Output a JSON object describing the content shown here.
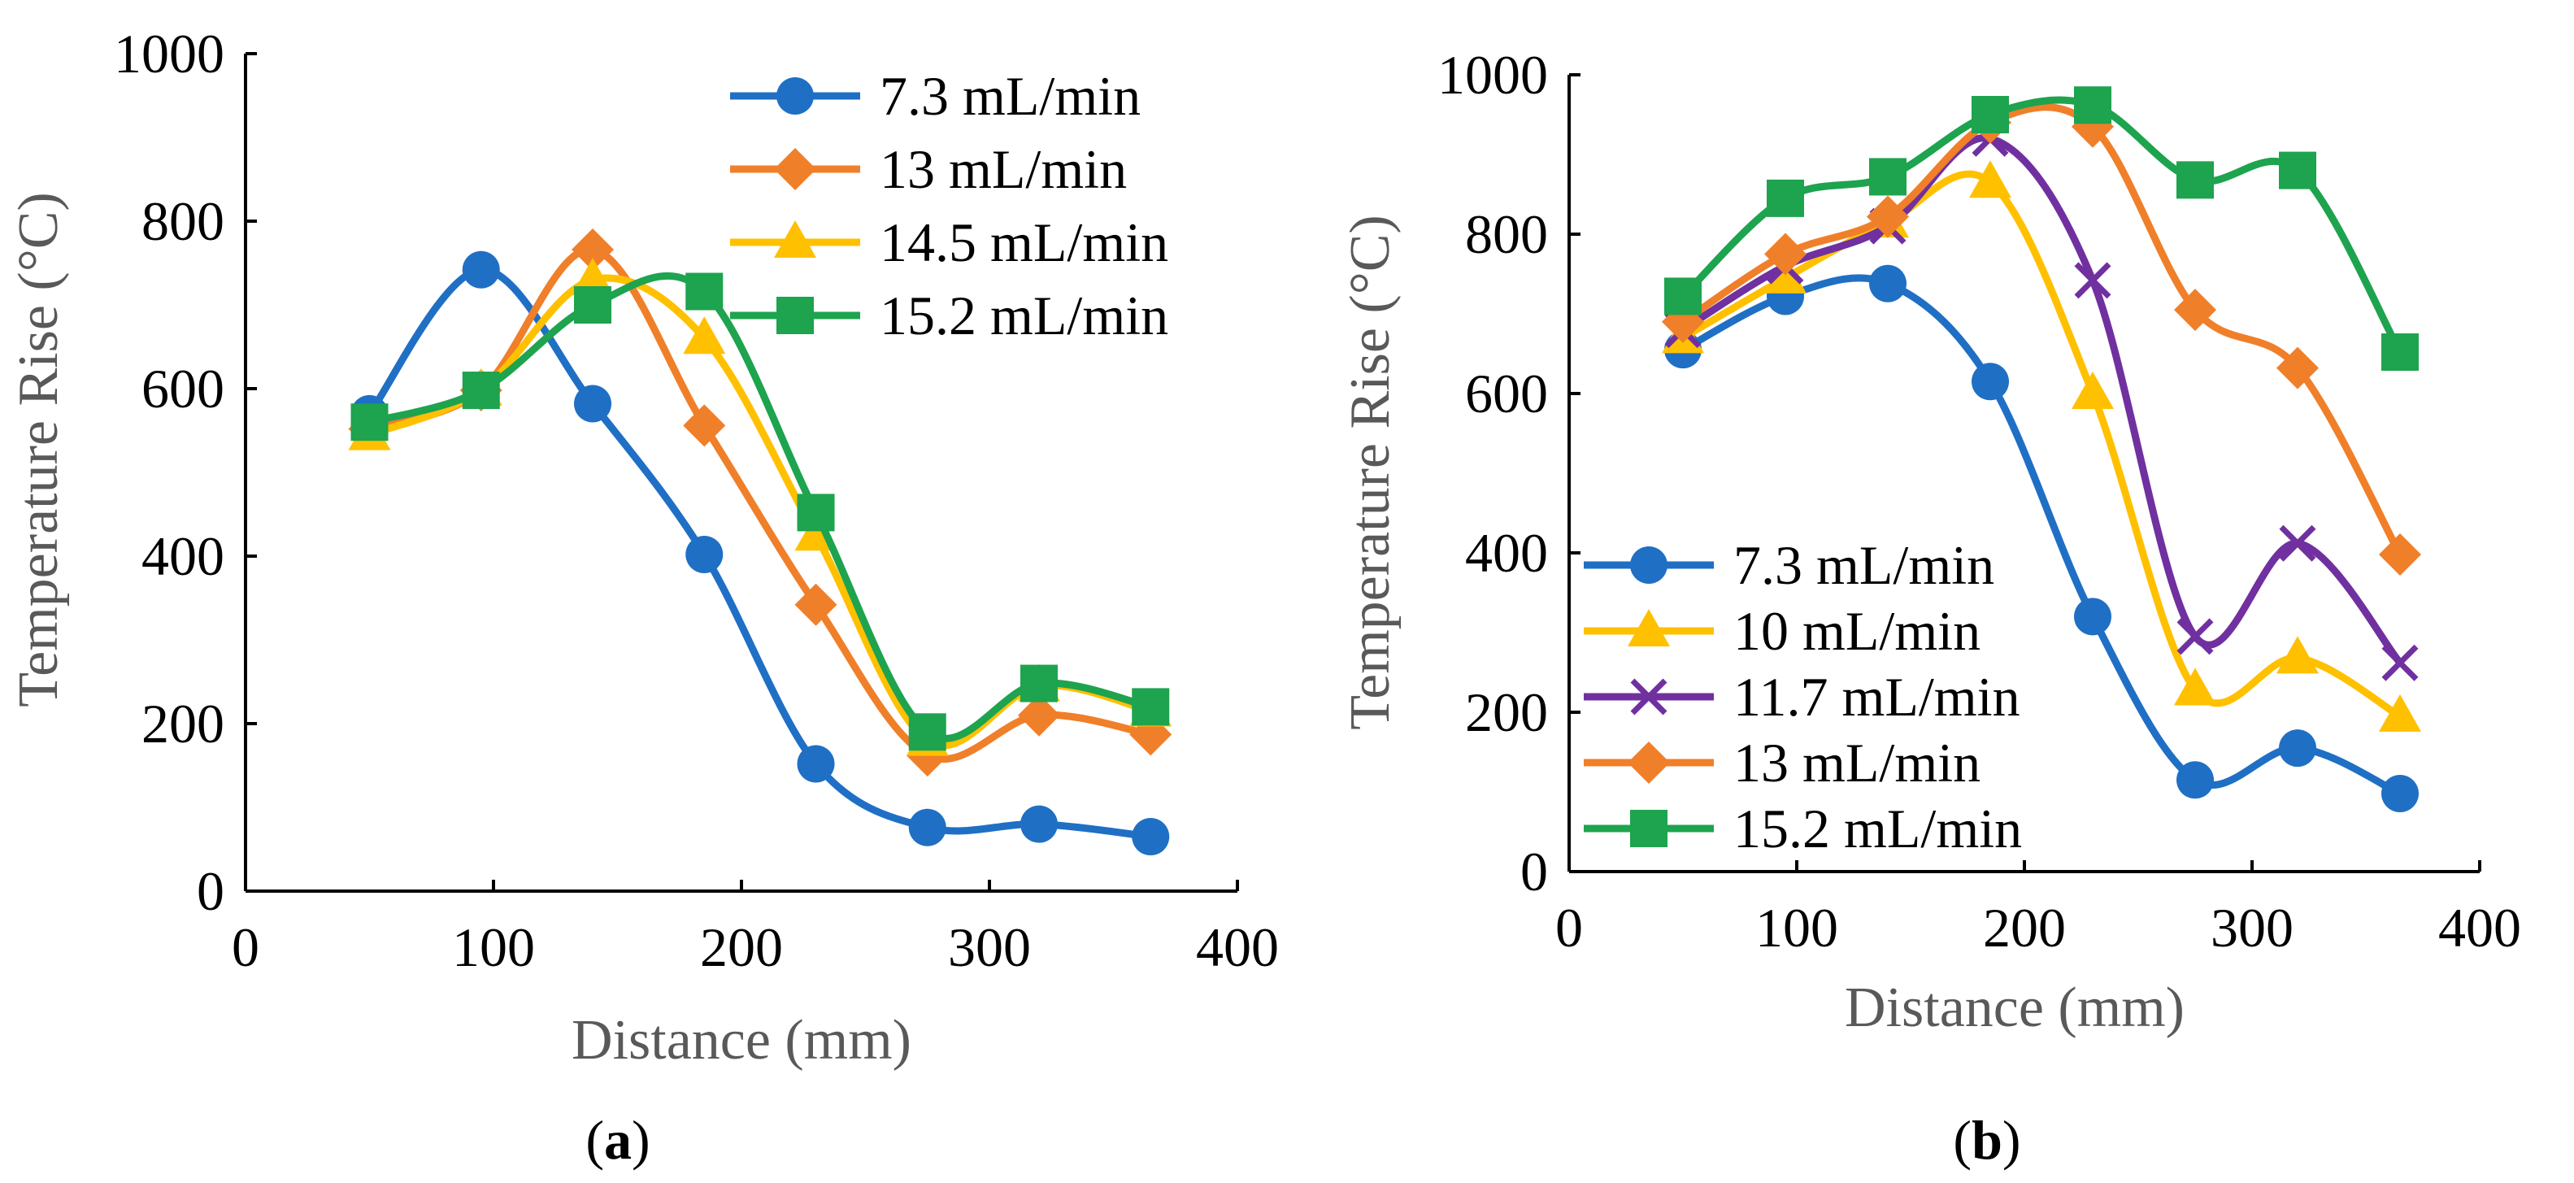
{
  "chart_data": [
    {
      "type": "line",
      "panel_label": "a",
      "caption_open": "(",
      "caption_close": ")",
      "xlabel": "Distance (mm)",
      "ylabel": "Temperature Rise (°C)",
      "xlim": [
        0,
        400
      ],
      "ylim": [
        0,
        1000
      ],
      "xticks": [
        0,
        100,
        200,
        300,
        400
      ],
      "yticks": [
        0,
        200,
        400,
        600,
        800,
        1000
      ],
      "legend_position": "top-right",
      "x": [
        50,
        95,
        140,
        185,
        230,
        275,
        320,
        365
      ],
      "series": [
        {
          "name": "7.3 mL/min",
          "color": "#1f6fc5",
          "marker": "circle",
          "values": [
            570,
            742,
            582,
            402,
            152,
            76,
            80,
            65
          ]
        },
        {
          "name": "13 mL/min",
          "color": "#f07f2a",
          "marker": "diamond",
          "values": [
            552,
            598,
            766,
            556,
            342,
            162,
            210,
            187
          ]
        },
        {
          "name": "14.5 mL/min",
          "color": "#ffc000",
          "marker": "triangle",
          "values": [
            545,
            598,
            730,
            660,
            425,
            180,
            245,
            215
          ]
        },
        {
          "name": "15.2 mL/min",
          "color": "#1ea34e",
          "marker": "square",
          "values": [
            560,
            598,
            700,
            716,
            452,
            190,
            248,
            220
          ]
        }
      ]
    },
    {
      "type": "line",
      "panel_label": "b",
      "caption_open": "(",
      "caption_close": ")",
      "xlabel": "Distance (mm)",
      "ylabel": "Temperature Rise (°C)",
      "xlim": [
        0,
        400
      ],
      "ylim": [
        0,
        1000
      ],
      "xticks": [
        0,
        100,
        200,
        300,
        400
      ],
      "yticks": [
        0,
        200,
        400,
        600,
        800,
        1000
      ],
      "legend_position": "bottom-left",
      "x": [
        50,
        95,
        140,
        185,
        230,
        275,
        320,
        365
      ],
      "series": [
        {
          "name": "7.3 mL/min",
          "color": "#1f6fc5",
          "marker": "circle",
          "values": [
            655,
            722,
            738,
            615,
            320,
            115,
            155,
            98
          ]
        },
        {
          "name": "10 mL/min",
          "color": "#ffc000",
          "marker": "triangle",
          "values": [
            670,
            745,
            815,
            865,
            600,
            228,
            268,
            195
          ]
        },
        {
          "name": "11.7 mL/min",
          "color": "#7030a0",
          "marker": "x",
          "values": [
            680,
            760,
            810,
            920,
            742,
            295,
            412,
            262
          ]
        },
        {
          "name": "13 mL/min",
          "color": "#f07f2a",
          "marker": "diamond",
          "values": [
            690,
            775,
            822,
            940,
            935,
            705,
            632,
            398
          ]
        },
        {
          "name": "15.2 mL/min",
          "color": "#1ea34e",
          "marker": "square",
          "values": [
            722,
            845,
            872,
            950,
            962,
            868,
            880,
            652
          ]
        }
      ]
    }
  ]
}
